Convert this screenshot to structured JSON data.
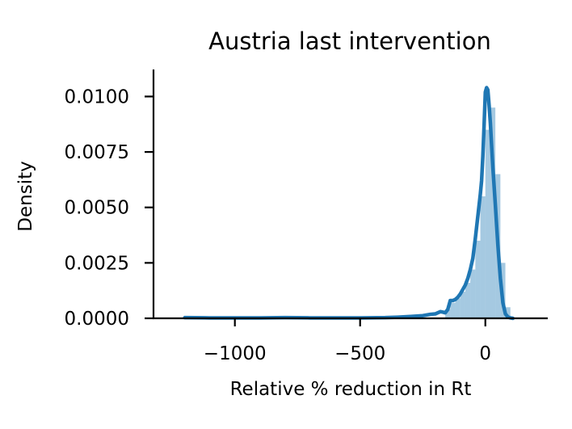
{
  "chart_data": {
    "type": "area",
    "title": "Austria last intervention",
    "xlabel": "Relative % reduction in Rt",
    "ylabel": "Density",
    "xlim": [
      -1270,
      175
    ],
    "ylim": [
      0,
      0.011
    ],
    "xticks": [
      -1000,
      -500,
      0
    ],
    "xtick_labels": [
      "−1000",
      "−500",
      "0"
    ],
    "yticks": [
      0,
      0.0025,
      0.005,
      0.0075,
      0.01
    ],
    "ytick_labels": [
      "0.0000",
      "0.0025",
      "0.0050",
      "0.0075",
      "0.0100"
    ],
    "grid": false,
    "spines": "left-bottom",
    "series": [
      {
        "kind": "kde_line",
        "color": "#1f77b4",
        "x": [
          -1200,
          -1100,
          -1000,
          -900,
          -800,
          -700,
          -600,
          -500,
          -400,
          -350,
          -300,
          -250,
          -220,
          -200,
          -190,
          -180,
          -170,
          -160,
          -150,
          -140,
          -130,
          -120,
          -110,
          -100,
          -90,
          -80,
          -70,
          -60,
          -50,
          -40,
          -30,
          -20,
          -15,
          -10,
          -5,
          0,
          5,
          10,
          15,
          20,
          25,
          30,
          40,
          50,
          60,
          70,
          80,
          90,
          100,
          110
        ],
        "y": [
          3e-05,
          2e-05,
          2e-05,
          2e-05,
          3e-05,
          2e-05,
          2e-05,
          2e-05,
          3e-05,
          5e-05,
          8e-05,
          0.00012,
          0.00018,
          0.0002,
          0.00025,
          0.0003,
          0.00028,
          0.00025,
          0.0004,
          0.0008,
          0.0008,
          0.00085,
          0.00095,
          0.0011,
          0.0013,
          0.0015,
          0.0018,
          0.0022,
          0.0027,
          0.0036,
          0.0046,
          0.0056,
          0.0062,
          0.0073,
          0.0087,
          0.0102,
          0.0104,
          0.0103,
          0.0096,
          0.0088,
          0.0078,
          0.0068,
          0.0051,
          0.0033,
          0.0018,
          0.0007,
          0.0002,
          6e-05,
          2e-05,
          0.0
        ],
        "label": ""
      },
      {
        "kind": "histogram",
        "color": "#1f77b4",
        "opacity": 0.4,
        "bin_edges": [
          -160,
          -140,
          -120,
          -100,
          -80,
          -60,
          -40,
          -20,
          0,
          20,
          40,
          60,
          80,
          100
        ],
        "values": [
          0.0004,
          0.0007,
          0.0009,
          0.0012,
          0.0016,
          0.0022,
          0.0035,
          0.0055,
          0.0085,
          0.0095,
          0.0065,
          0.0025,
          0.0005
        ]
      }
    ]
  }
}
